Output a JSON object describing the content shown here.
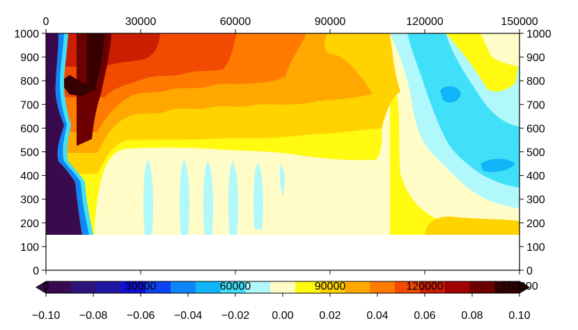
{
  "chart_data": {
    "type": "heatmap",
    "title": "",
    "xlabel": "",
    "ylabel": "",
    "x_ticks_top": [
      "0",
      "30000",
      "60000",
      "90000",
      "120000",
      "150000"
    ],
    "x_ticks_bottom": [
      "",
      "",
      "",
      "",
      "",
      ""
    ],
    "x_ticks_colorbar_overlay": [
      "0",
      "30000",
      "60000",
      "90000",
      "120000",
      "150000"
    ],
    "y_ticks_left": [
      "1000",
      "900",
      "800",
      "700",
      "600",
      "500",
      "400",
      "300",
      "200",
      "100",
      "0"
    ],
    "y_ticks_right": [
      "1000",
      "900",
      "800",
      "700",
      "600",
      "500",
      "400",
      "300",
      "200",
      "100",
      "0"
    ],
    "xlim": [
      0,
      150000
    ],
    "ylim": [
      0,
      1000
    ],
    "data_ylim": [
      150,
      1000
    ],
    "colorbar": {
      "levels": [
        -0.1,
        -0.09,
        -0.08,
        -0.07,
        -0.06,
        -0.05,
        -0.04,
        -0.03,
        -0.02,
        -0.01,
        0.0,
        0.01,
        0.02,
        0.03,
        0.04,
        0.05,
        0.06,
        0.07,
        0.08,
        0.09,
        0.1
      ],
      "labels": [
        "−0.10",
        "−0.08",
        "−0.06",
        "−0.04",
        "−0.02",
        "0.00",
        "0.02",
        "0.04",
        "0.06",
        "0.08",
        "0.10"
      ],
      "colors": [
        "#3a0a4e",
        "#2e1478",
        "#1f16a2",
        "#1010d4",
        "#0a44f0",
        "#0e86f6",
        "#10b4f8",
        "#40e0f8",
        "#b0f8fc",
        "#fffcc8",
        "#fffa10",
        "#ffd200",
        "#ffa800",
        "#ff7a00",
        "#f24a00",
        "#cc1e00",
        "#a00000",
        "#6c0000",
        "#340000"
      ],
      "extend": "both"
    },
    "regions": [
      {
        "name": "negative-west-boundary",
        "min": -0.1,
        "max": -0.02
      },
      {
        "name": "strong-positive-west",
        "min": 0.06,
        "max": 0.1
      },
      {
        "name": "light-positive-interior",
        "min": 0.0,
        "max": 0.02
      },
      {
        "name": "weak-negative-bands",
        "min": -0.02,
        "max": 0.0
      },
      {
        "name": "negative-east-lobe",
        "min": -0.04,
        "max": -0.01
      },
      {
        "name": "moderate-positive-upper",
        "min": 0.02,
        "max": 0.06
      }
    ]
  }
}
